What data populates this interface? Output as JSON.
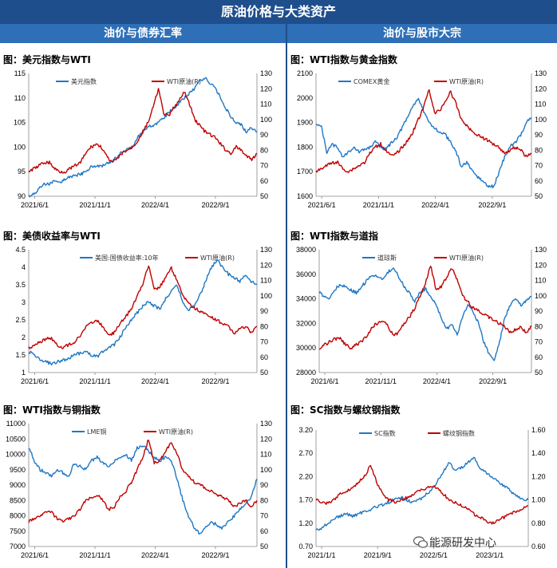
{
  "header": {
    "title": "原油价格与大类资产"
  },
  "sections": {
    "left": "油价与债券汇率",
    "right": "油价与股市大宗"
  },
  "watermark": "能源研发中心",
  "colors": {
    "primary": "#1f77c4",
    "secondary": "#c00000"
  },
  "chart_data": [
    {
      "id": "c1",
      "type": "line",
      "title": "图：美元指数与WTI",
      "x_ticks": [
        "2021/6/1",
        "2021/11/1",
        "2022/4/1",
        "2022/9/1"
      ],
      "yl_ticks": [
        "90",
        "95",
        "100",
        "105",
        "110",
        "115"
      ],
      "yl_range": [
        90,
        115
      ],
      "yr_ticks": [
        "50",
        "60",
        "70",
        "80",
        "90",
        "100",
        "110",
        "120",
        "130"
      ],
      "yr_range": [
        50,
        130
      ],
      "series": [
        {
          "name": "美元指数",
          "axis": "left",
          "color": "#1f77c4",
          "values": [
            90,
            90.5,
            91.5,
            92.5,
            92.5,
            93,
            92.8,
            93.5,
            94,
            94.2,
            94.5,
            95,
            96,
            96.2,
            96,
            96.5,
            97,
            98,
            99,
            99.5,
            100,
            102,
            103,
            104,
            104.5,
            105,
            106,
            107,
            108,
            109,
            110,
            111,
            112,
            113.5,
            114,
            113,
            112,
            110,
            108,
            106,
            105,
            104.5,
            103,
            104,
            103
          ]
        },
        {
          "name": "WTI原油(R)",
          "axis": "right",
          "color": "#c00000",
          "values": [
            66,
            68,
            70,
            72,
            72,
            68,
            66,
            66,
            68,
            70,
            72,
            78,
            82,
            84,
            82,
            76,
            72,
            74,
            78,
            80,
            82,
            86,
            92,
            98,
            108,
            120,
            104,
            102,
            108,
            112,
            118,
            110,
            100,
            96,
            92,
            90,
            88,
            84,
            80,
            78,
            82,
            80,
            76,
            74,
            78
          ]
        }
      ]
    },
    {
      "id": "c2",
      "type": "line",
      "title": "图：WTI指数与黄金指数",
      "x_ticks": [
        "2021/6/1",
        "2021/11/1",
        "2022/4/1",
        "2022/9/1"
      ],
      "yl_ticks": [
        "1600",
        "1700",
        "1800",
        "1900",
        "2000",
        "2100"
      ],
      "yl_range": [
        1600,
        2100
      ],
      "yr_ticks": [
        "50",
        "60",
        "70",
        "80",
        "90",
        "100",
        "110",
        "120",
        "130"
      ],
      "yr_range": [
        50,
        130
      ],
      "series": [
        {
          "name": "COMEX黄金",
          "axis": "left",
          "color": "#1f77c4",
          "values": [
            1900,
            1880,
            1780,
            1810,
            1800,
            1760,
            1780,
            1800,
            1780,
            1790,
            1800,
            1820,
            1800,
            1790,
            1820,
            1840,
            1880,
            1920,
            1970,
            2000,
            1940,
            1900,
            1880,
            1860,
            1850,
            1820,
            1780,
            1720,
            1740,
            1700,
            1680,
            1660,
            1640,
            1640,
            1700,
            1760,
            1800,
            1820,
            1850,
            1900,
            1920
          ]
        },
        {
          "name": "WTI原油(R)",
          "axis": "right",
          "color": "#c00000",
          "values": [
            66,
            68,
            70,
            72,
            72,
            68,
            66,
            68,
            70,
            72,
            78,
            82,
            84,
            80,
            76,
            78,
            82,
            86,
            92,
            100,
            108,
            120,
            104,
            106,
            112,
            118,
            110,
            100,
            96,
            92,
            90,
            88,
            86,
            84,
            82,
            78,
            80,
            82,
            80,
            76,
            78
          ]
        }
      ]
    },
    {
      "id": "c3",
      "type": "line",
      "title": "图：美债收益率与WTI",
      "x_ticks": [
        "2021/6/1",
        "2021/11/1",
        "2022/4/1",
        "2022/9/1"
      ],
      "yl_ticks": [
        "1",
        "1.5",
        "2",
        "2.5",
        "3",
        "3.5",
        "4",
        "4.5"
      ],
      "yl_range": [
        1,
        4.5
      ],
      "yr_ticks": [
        "50",
        "60",
        "70",
        "80",
        "90",
        "100",
        "110",
        "120",
        "130"
      ],
      "yr_range": [
        50,
        130
      ],
      "series": [
        {
          "name": "美国:国债收益率:10年",
          "axis": "left",
          "color": "#1f77c4",
          "values": [
            1.6,
            1.5,
            1.35,
            1.3,
            1.25,
            1.3,
            1.35,
            1.4,
            1.5,
            1.55,
            1.6,
            1.5,
            1.45,
            1.6,
            1.7,
            1.8,
            2.0,
            2.3,
            2.5,
            2.7,
            2.9,
            3.0,
            2.9,
            2.8,
            3.1,
            3.3,
            3.5,
            3.0,
            2.8,
            2.9,
            3.2,
            3.6,
            4.0,
            4.2,
            4.0,
            3.8,
            3.7,
            3.6,
            3.8,
            3.6,
            3.5
          ]
        },
        {
          "name": "WTI原油(R)",
          "axis": "right",
          "color": "#c00000",
          "values": [
            66,
            68,
            70,
            72,
            72,
            68,
            66,
            68,
            70,
            74,
            80,
            82,
            84,
            80,
            74,
            76,
            82,
            86,
            92,
            100,
            108,
            120,
            104,
            106,
            112,
            118,
            110,
            100,
            96,
            92,
            90,
            88,
            86,
            84,
            82,
            80,
            76,
            78,
            80,
            76,
            80
          ]
        }
      ]
    },
    {
      "id": "c4",
      "type": "line",
      "title": "图：WTI指数与道指",
      "x_ticks": [
        "2021/6/1",
        "2021/11/1",
        "2022/4/1",
        "2022/9/1"
      ],
      "yl_ticks": [
        "28000",
        "30000",
        "32000",
        "34000",
        "36000",
        "38000"
      ],
      "yl_range": [
        28000,
        38000
      ],
      "yr_ticks": [
        "50",
        "60",
        "70",
        "80",
        "90",
        "100",
        "110",
        "120",
        "130"
      ],
      "yr_range": [
        50,
        130
      ],
      "series": [
        {
          "name": "道琼斯",
          "axis": "left",
          "color": "#1f77c4",
          "values": [
            34500,
            34200,
            34000,
            34800,
            35200,
            35000,
            34700,
            34500,
            35000,
            35500,
            36000,
            35800,
            35500,
            36200,
            36500,
            35800,
            35000,
            34500,
            33800,
            34500,
            34800,
            34200,
            33500,
            32500,
            31500,
            32000,
            31000,
            32500,
            33500,
            33000,
            32000,
            30500,
            29500,
            29000,
            30500,
            32500,
            33500,
            34000,
            33500,
            33800,
            34200
          ]
        },
        {
          "name": "WTI原油(R)",
          "axis": "right",
          "color": "#c00000",
          "values": [
            66,
            68,
            70,
            72,
            72,
            68,
            66,
            68,
            70,
            74,
            80,
            82,
            84,
            80,
            74,
            76,
            82,
            86,
            92,
            100,
            108,
            120,
            104,
            106,
            112,
            118,
            110,
            100,
            96,
            92,
            90,
            88,
            86,
            84,
            82,
            80,
            76,
            78,
            80,
            76,
            80
          ]
        }
      ]
    },
    {
      "id": "c5",
      "type": "line",
      "title": "图：WTI指数与铜指数",
      "x_ticks": [
        "2021/6/1",
        "2021/11/1",
        "2022/4/1",
        "2022/9/1"
      ],
      "yl_ticks": [
        "7000",
        "7500",
        "8000",
        "8500",
        "9000",
        "9500",
        "10000",
        "10500",
        "11000"
      ],
      "yl_range": [
        7000,
        11000
      ],
      "yr_ticks": [
        "50",
        "60",
        "70",
        "80",
        "90",
        "100",
        "110",
        "120",
        "130"
      ],
      "yr_range": [
        50,
        130
      ],
      "series": [
        {
          "name": "LME铜",
          "axis": "left",
          "color": "#1f77c4",
          "values": [
            10200,
            9800,
            9500,
            9400,
            9300,
            9500,
            9400,
            9300,
            9700,
            9600,
            9500,
            9800,
            9900,
            9700,
            9600,
            9800,
            9900,
            10000,
            9800,
            10200,
            10300,
            10100,
            9900,
            9800,
            9900,
            9800,
            9200,
            8500,
            8000,
            7600,
            7400,
            7600,
            7800,
            7700,
            7600,
            7800,
            8000,
            8200,
            8400,
            8600,
            9200
          ]
        },
        {
          "name": "WTI原油(R)",
          "axis": "right",
          "color": "#c00000",
          "values": [
            66,
            68,
            70,
            72,
            72,
            68,
            66,
            68,
            70,
            74,
            80,
            82,
            84,
            80,
            74,
            76,
            82,
            86,
            92,
            100,
            108,
            120,
            104,
            106,
            112,
            118,
            110,
            100,
            96,
            92,
            90,
            88,
            86,
            84,
            82,
            80,
            76,
            78,
            80,
            76,
            80
          ]
        }
      ]
    },
    {
      "id": "c6",
      "type": "line",
      "title": "图：SC指数与螺纹钢指数",
      "x_ticks": [
        "2021/1/1",
        "2021/9/1",
        "2022/5/1",
        "2023/1/1"
      ],
      "yl_ticks": [
        "0.70",
        "1.20",
        "1.70",
        "2.20",
        "2.70",
        "3.20"
      ],
      "yl_range": [
        0.7,
        3.2
      ],
      "yr_ticks": [
        "0.60",
        "0.80",
        "1.00",
        "1.20",
        "1.40",
        "1.60"
      ],
      "yr_range": [
        0.6,
        1.6
      ],
      "series": [
        {
          "name": "SC指数",
          "axis": "left",
          "color": "#1f77c4",
          "values": [
            1.05,
            1.1,
            1.2,
            1.3,
            1.35,
            1.4,
            1.35,
            1.4,
            1.45,
            1.5,
            1.55,
            1.6,
            1.65,
            1.7,
            1.75,
            1.7,
            1.65,
            1.7,
            1.8,
            1.9,
            2.1,
            2.3,
            2.5,
            2.3,
            2.4,
            2.5,
            2.6,
            2.4,
            2.3,
            2.2,
            2.1,
            2.0,
            1.9,
            1.8,
            1.7,
            1.7
          ]
        },
        {
          "name": "螺纹钢指数",
          "axis": "right",
          "color": "#c00000",
          "values": [
            1.0,
            0.98,
            0.97,
            1.0,
            1.05,
            1.08,
            1.1,
            1.15,
            1.2,
            1.3,
            1.15,
            1.05,
            1.0,
            0.98,
            1.0,
            1.02,
            1.05,
            1.08,
            1.1,
            1.12,
            1.1,
            1.05,
            1.0,
            0.98,
            0.95,
            0.92,
            0.88,
            0.85,
            0.82,
            0.8,
            0.82,
            0.85,
            0.88,
            0.9,
            0.92,
            0.95
          ]
        }
      ]
    }
  ]
}
